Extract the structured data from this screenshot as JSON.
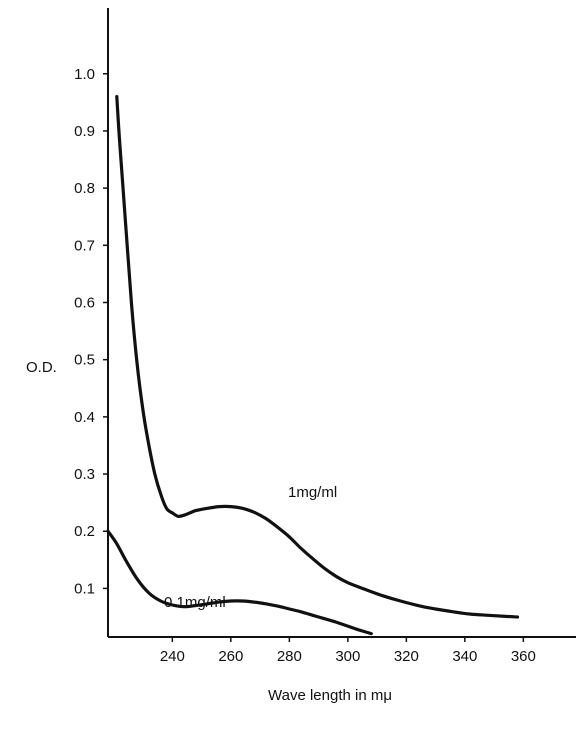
{
  "chart_data": {
    "type": "line",
    "title": "",
    "xlabel": "Wave length in mμ",
    "ylabel": "O.D.",
    "xlim": [
      218,
      378
    ],
    "ylim": [
      0.015,
      1.115
    ],
    "x_ticks": [
      240,
      260,
      280,
      300,
      320,
      340,
      360
    ],
    "x_tick_labels": [
      "240",
      "260",
      "280",
      "300",
      "320",
      "340",
      "360"
    ],
    "y_ticks": [
      0.1,
      0.2,
      0.3,
      0.4,
      0.5,
      0.6,
      0.7,
      0.8,
      0.9,
      1.0
    ],
    "y_tick_labels": [
      "0.1",
      "0.2",
      "0.3",
      "0.4",
      "0.5",
      "0.6",
      "0.7",
      "0.8",
      "0.9",
      "1.0"
    ],
    "grid": false,
    "series": [
      {
        "name": "1mg/ml",
        "color": "#111111",
        "points": [
          [
            221,
            0.96
          ],
          [
            222,
            0.88
          ],
          [
            224,
            0.74
          ],
          [
            226,
            0.6
          ],
          [
            228,
            0.49
          ],
          [
            230,
            0.41
          ],
          [
            232,
            0.35
          ],
          [
            234,
            0.3
          ],
          [
            236,
            0.265
          ],
          [
            238,
            0.24
          ],
          [
            240,
            0.232
          ],
          [
            242,
            0.226
          ],
          [
            244,
            0.228
          ],
          [
            246,
            0.232
          ],
          [
            248,
            0.236
          ],
          [
            252,
            0.24
          ],
          [
            256,
            0.243
          ],
          [
            260,
            0.243
          ],
          [
            264,
            0.24
          ],
          [
            268,
            0.233
          ],
          [
            272,
            0.222
          ],
          [
            276,
            0.207
          ],
          [
            280,
            0.19
          ],
          [
            284,
            0.17
          ],
          [
            288,
            0.152
          ],
          [
            292,
            0.135
          ],
          [
            296,
            0.121
          ],
          [
            300,
            0.11
          ],
          [
            306,
            0.098
          ],
          [
            312,
            0.087
          ],
          [
            318,
            0.078
          ],
          [
            324,
            0.07
          ],
          [
            330,
            0.064
          ],
          [
            336,
            0.059
          ],
          [
            342,
            0.055
          ],
          [
            348,
            0.053
          ],
          [
            354,
            0.051
          ],
          [
            358,
            0.05
          ]
        ]
      },
      {
        "name": "0.1mg/ml",
        "color": "#111111",
        "points": [
          [
            218,
            0.2
          ],
          [
            221,
            0.178
          ],
          [
            224,
            0.15
          ],
          [
            228,
            0.116
          ],
          [
            232,
            0.092
          ],
          [
            236,
            0.078
          ],
          [
            240,
            0.071
          ],
          [
            244,
            0.068
          ],
          [
            248,
            0.07
          ],
          [
            252,
            0.073
          ],
          [
            256,
            0.076
          ],
          [
            260,
            0.078
          ],
          [
            264,
            0.078
          ],
          [
            268,
            0.076
          ],
          [
            272,
            0.073
          ],
          [
            276,
            0.069
          ],
          [
            280,
            0.064
          ],
          [
            284,
            0.059
          ],
          [
            288,
            0.053
          ],
          [
            292,
            0.047
          ],
          [
            296,
            0.041
          ],
          [
            300,
            0.034
          ],
          [
            304,
            0.027
          ],
          [
            308,
            0.021
          ]
        ]
      }
    ]
  }
}
